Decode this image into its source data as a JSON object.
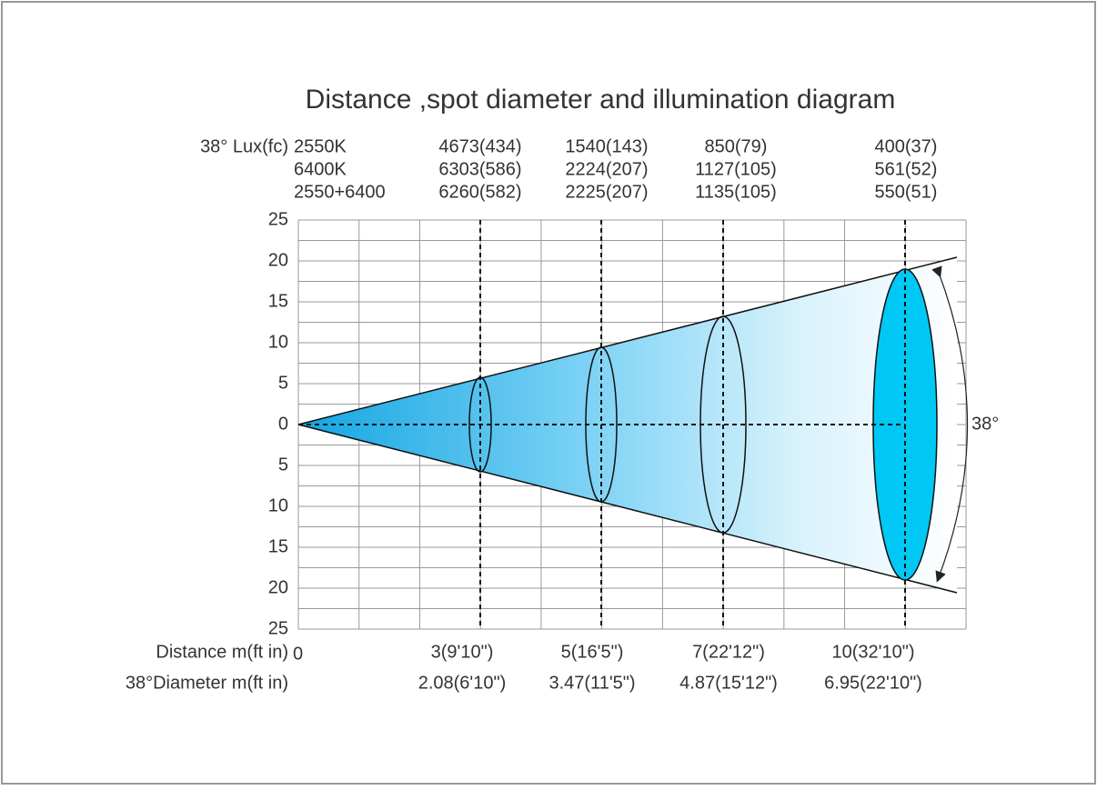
{
  "title": "Distance ,spot diameter and illumination diagram",
  "lux": {
    "label": "38° Lux(fc)",
    "rows": [
      "2550K",
      "6400K",
      "2550+6400"
    ],
    "columns": [
      [
        "4673(434)",
        "6303(586)",
        "6260(582)"
      ],
      [
        "1540(143)",
        "2224(207)",
        "2225(207)"
      ],
      [
        "850(79)",
        "1127(105)",
        "1135(105)"
      ],
      [
        "400(37)",
        "561(52)",
        "550(51)"
      ]
    ]
  },
  "y_axis": {
    "labels": [
      "25",
      "20",
      "15",
      "10",
      "5",
      "0",
      "5",
      "10",
      "15",
      "20",
      "25"
    ]
  },
  "distance": {
    "label": "Distance m(ft in)",
    "origin": "0",
    "values": [
      "3(9'10\")",
      "5(16'5\")",
      "7(22'12\")",
      "10(32'10\")"
    ]
  },
  "diameter": {
    "label": "38°Diameter m(ft in)",
    "values": [
      "2.08(6'10\")",
      "3.47(11'5\")",
      "4.87(15'12\")",
      "6.95(22'10\")"
    ]
  },
  "angle_label": "38°"
}
